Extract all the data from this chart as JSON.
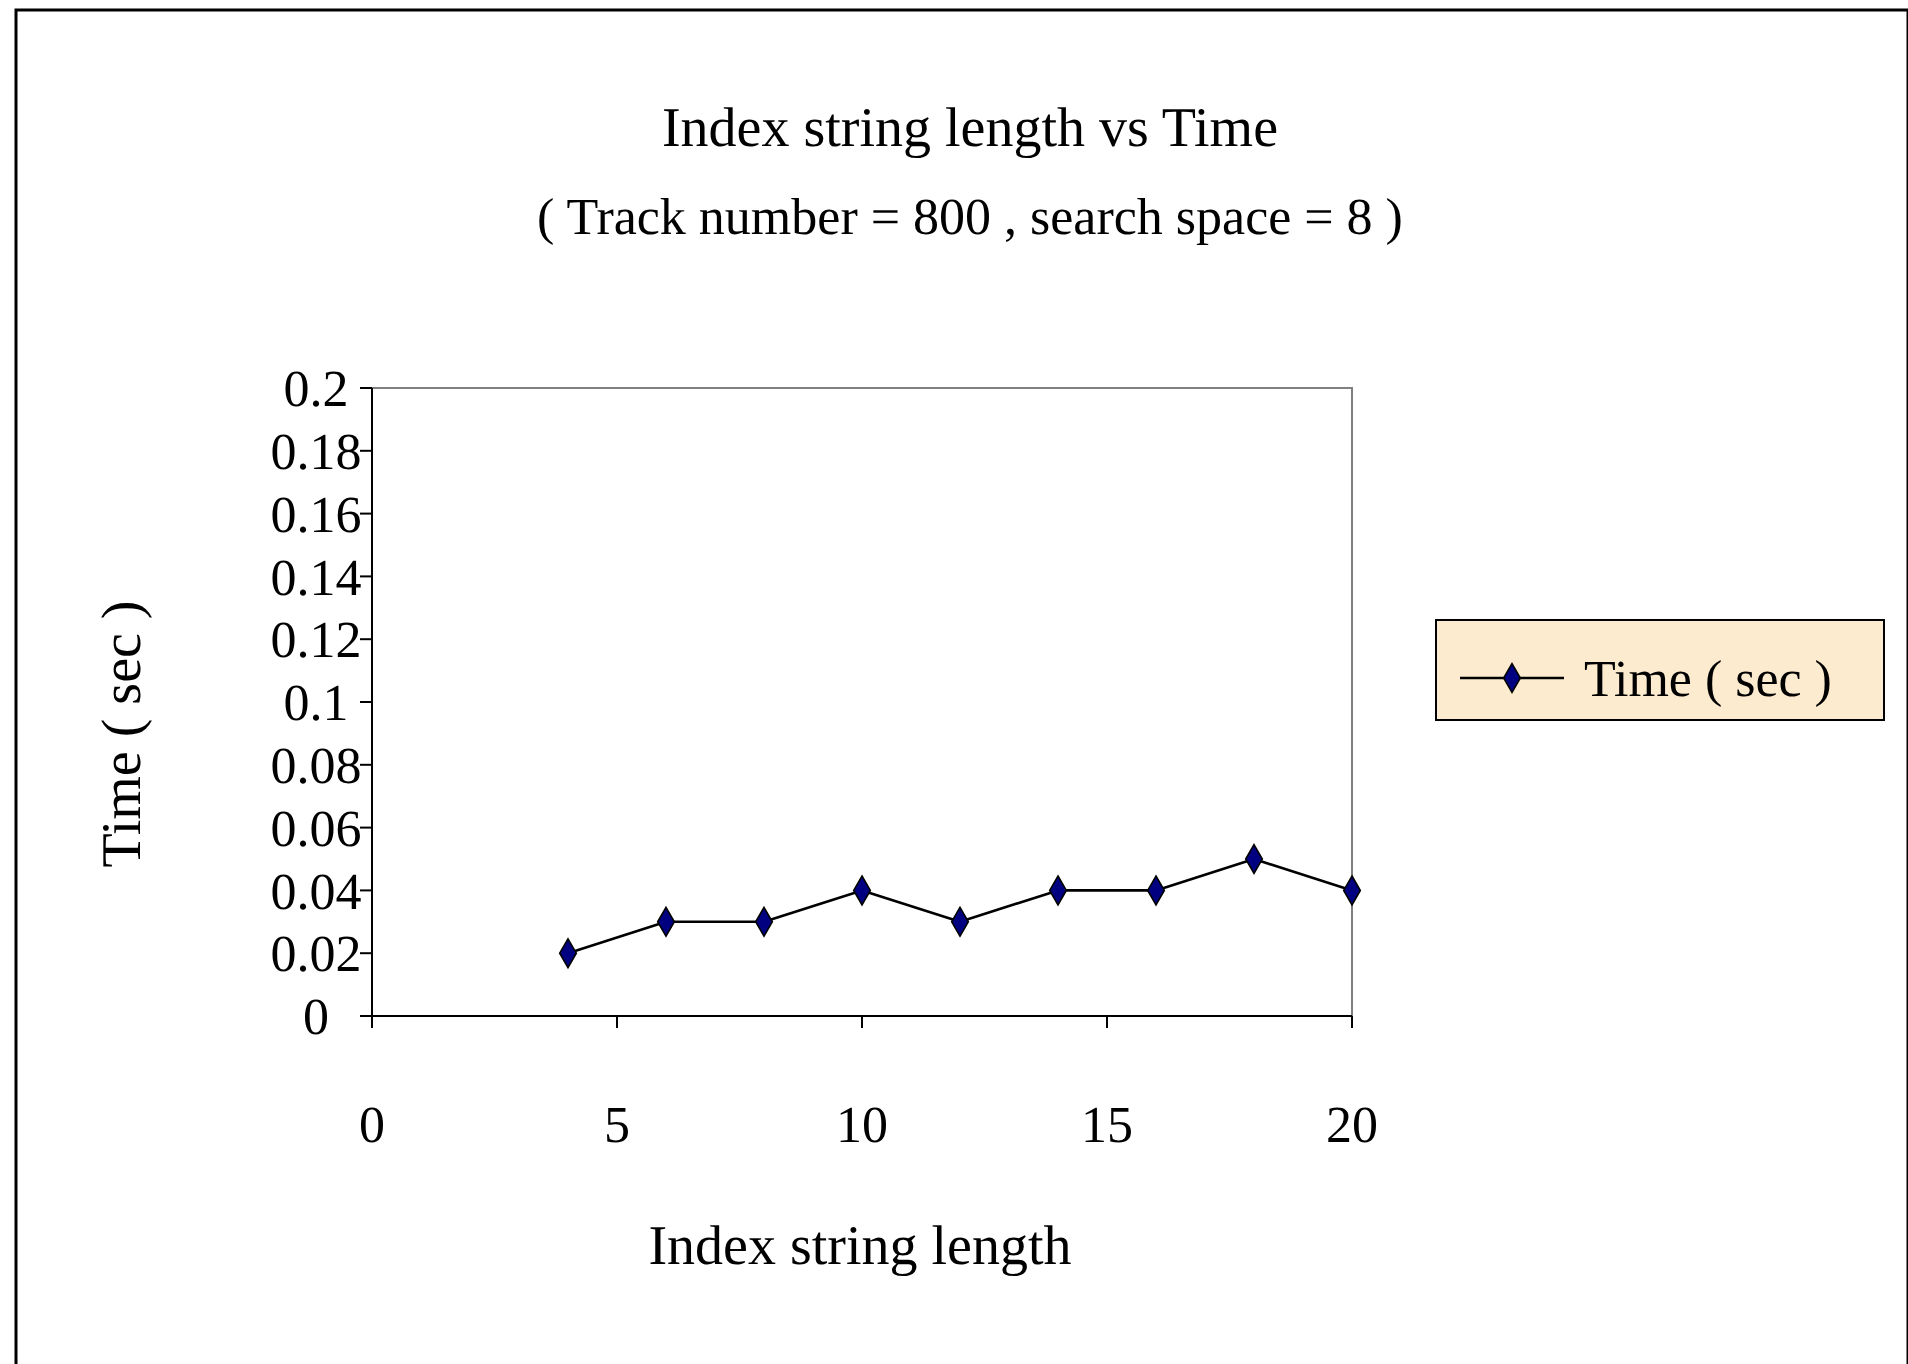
{
  "chart_data": {
    "type": "line",
    "title": "Index string length vs Time",
    "subtitle": "( Track number = 800 , search space = 8 )",
    "xlabel": "Index string length",
    "ylabel": "Time ( sec )",
    "x": [
      4,
      6,
      8,
      10,
      12,
      14,
      16,
      18,
      20
    ],
    "series": [
      {
        "name": "Time ( sec )",
        "color": "#000080",
        "values": [
          0.02,
          0.03,
          0.03,
          0.04,
          0.03,
          0.04,
          0.04,
          0.05,
          0.04
        ]
      }
    ],
    "xlim": [
      0,
      20
    ],
    "xticks": [
      0,
      5,
      10,
      15,
      20
    ],
    "ylim": [
      0,
      0.2
    ],
    "yticks": [
      0,
      0.02,
      0.04,
      0.06,
      0.08,
      0.1,
      0.12,
      0.14,
      0.16,
      0.18,
      0.2
    ],
    "grid": false,
    "legend": "right",
    "marker": "diamond",
    "line_style": "solid"
  }
}
